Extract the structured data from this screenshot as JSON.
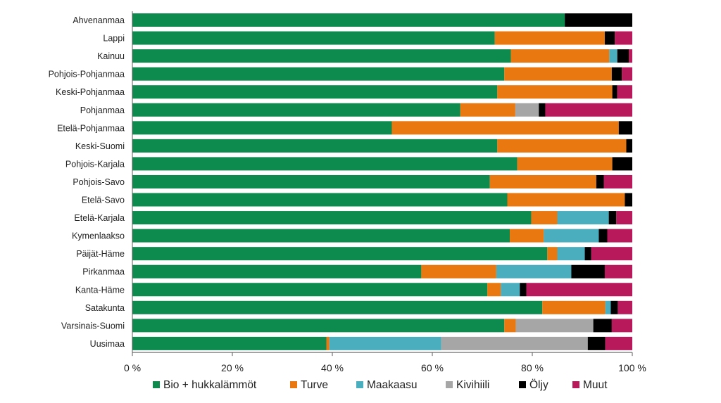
{
  "chart_data": {
    "type": "bar",
    "orientation": "horizontal",
    "stacked": true,
    "categories": [
      "Ahvenanmaa",
      "Lappi",
      "Kainuu",
      "Pohjois-Pohjanmaa",
      "Keski-Pohjanmaa",
      "Pohjanmaa",
      "Etelä-Pohjanmaa",
      "Keski-Suomi",
      "Pohjois-Karjala",
      "Pohjois-Savo",
      "Etelä-Savo",
      "Etelä-Karjala",
      "Kymenlaakso",
      "Päijät-Häme",
      "Pirkanmaa",
      "Kanta-Häme",
      "Satakunta",
      "Varsinais-Suomi",
      "Uusimaa"
    ],
    "series": [
      {
        "name": "Bio + hukkalämmöt",
        "color": "#0d8a4e",
        "values": [
          86.5,
          72.5,
          75.7,
          74.4,
          73.0,
          65.6,
          51.9,
          73.0,
          77.0,
          71.5,
          75.0,
          79.8,
          75.5,
          83.0,
          57.8,
          71.0,
          82.0,
          74.4,
          38.8
        ]
      },
      {
        "name": "Turve",
        "color": "#e8780f",
        "values": [
          0,
          22.0,
          19.7,
          21.5,
          23.0,
          11.0,
          45.4,
          25.8,
          19.0,
          21.3,
          23.5,
          5.2,
          6.8,
          2.0,
          15.0,
          2.7,
          12.6,
          2.3,
          0.6
        ]
      },
      {
        "name": "Maakaasu",
        "color": "#4aaebe",
        "values": [
          0,
          0,
          1.6,
          0,
          0,
          0,
          0,
          0,
          0,
          0,
          0,
          10.3,
          11.0,
          5.5,
          15.0,
          3.8,
          1.1,
          0,
          22.4
        ]
      },
      {
        "name": "Kivihiili",
        "color": "#a6a6a6",
        "values": [
          0,
          0,
          0,
          0,
          0,
          4.7,
          0,
          0,
          0,
          0,
          0,
          0,
          0,
          0,
          0,
          0,
          0,
          15.5,
          29.3
        ]
      },
      {
        "name": "Öljy",
        "color": "#000000",
        "values": [
          13.5,
          2.0,
          2.3,
          2.0,
          1.0,
          1.3,
          2.7,
          1.2,
          4.0,
          1.5,
          1.5,
          1.5,
          1.7,
          1.3,
          6.7,
          1.3,
          1.4,
          3.7,
          3.5
        ]
      },
      {
        "name": "Muut",
        "color": "#b8195a",
        "values": [
          0,
          3.5,
          0.7,
          2.1,
          3.0,
          17.4,
          0,
          0,
          0,
          5.7,
          0,
          3.2,
          5.0,
          8.2,
          5.5,
          21.2,
          2.9,
          4.1,
          5.4
        ]
      }
    ],
    "xlim": [
      0,
      100
    ],
    "x_ticks": [
      0,
      20,
      40,
      60,
      80,
      100
    ],
    "x_tick_labels": [
      "0 %",
      "20 %",
      "40 %",
      "60 %",
      "80 %",
      "100 %"
    ],
    "title": "",
    "xlabel": "",
    "ylabel": "",
    "grid": false,
    "legend_position": "bottom"
  }
}
